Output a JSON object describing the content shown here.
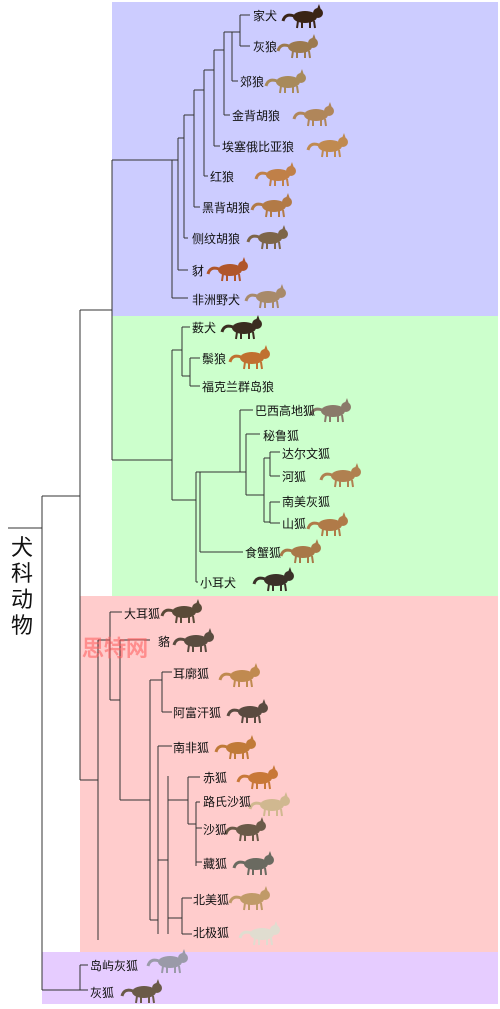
{
  "root_label": "犬科动物",
  "watermark": "思特网",
  "colors": {
    "group_wolves": "#ccccff",
    "group_south_american": "#ccffcc",
    "group_foxes": "#ffcccc",
    "group_gray_foxes": "#e6ccff",
    "line": "#333333"
  },
  "groups": {
    "wolves": [
      "家犬",
      "灰狼",
      "郊狼",
      "金背胡狼",
      "埃塞俄比亚狼",
      "红狼",
      "黑背胡狼",
      "侧纹胡狼",
      "豺",
      "非洲野犬"
    ],
    "south_american": [
      "薮犬",
      "鬃狼",
      "福克兰群岛狼",
      "巴西高地狐",
      "秘鲁狐",
      "达尔文狐",
      "河狐",
      "南美灰狐",
      "山狐",
      "食蟹狐",
      "小耳犬"
    ],
    "foxes": [
      "大耳狐",
      "貉",
      "耳廓狐",
      "阿富汗狐",
      "南非狐",
      "赤狐",
      "路氏沙狐",
      "沙狐",
      "藏狐",
      "北美狐",
      "北极狐"
    ],
    "gray_foxes": [
      "岛屿灰狐",
      "灰狐"
    ]
  }
}
